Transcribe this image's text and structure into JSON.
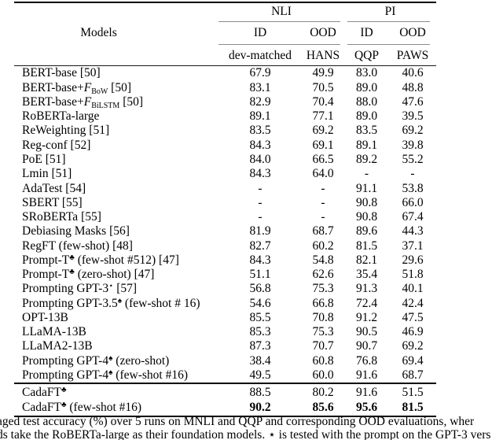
{
  "page": {
    "background": "#ffffff",
    "text_color": "#000000",
    "rule_color": "#000000",
    "cmidrule_color": "#8c8c8c"
  },
  "table": {
    "models_header": "Models",
    "groups": [
      {
        "label": "NLI",
        "sub": [
          "ID",
          "OOD"
        ],
        "datasets": [
          "dev-matched",
          "HANS"
        ]
      },
      {
        "label": "PI",
        "sub": [
          "ID",
          "OOD"
        ],
        "datasets": [
          "QQP",
          "PAWS"
        ]
      }
    ],
    "rows": [
      {
        "pre": "BERT-base",
        "post": " [50]",
        "values": [
          "67.9",
          "49.9",
          "83.0",
          "40.6"
        ]
      },
      {
        "pre": "BERT-base+",
        "cal": "F",
        "sub": "BoW",
        "post": " [50]",
        "values": [
          "83.1",
          "70.5",
          "89.0",
          "48.8"
        ]
      },
      {
        "pre": "BERT-base+",
        "cal": "F",
        "sub": "BiLSTM",
        "post": " [50]",
        "values": [
          "82.9",
          "70.4",
          "88.0",
          "47.6"
        ]
      },
      {
        "pre": "RoBERTa-large",
        "values": [
          "89.1",
          "77.1",
          "89.0",
          "39.5"
        ]
      },
      {
        "pre": "ReWeighting [51]",
        "values": [
          "83.5",
          "69.2",
          "83.5",
          "69.2"
        ]
      },
      {
        "pre": "Reg-conf [52]",
        "values": [
          "84.3",
          "69.1",
          "89.1",
          "39.8"
        ]
      },
      {
        "pre": "PoE [51]",
        "values": [
          "84.0",
          "66.5",
          "89.2",
          "55.2"
        ]
      },
      {
        "pre": "Lmin [51]",
        "values": [
          "84.3",
          "64.0",
          "-",
          "-"
        ]
      },
      {
        "pre": "AdaTest [54]",
        "values": [
          "-",
          "-",
          "91.1",
          "53.8"
        ]
      },
      {
        "pre": "SBERT [55]",
        "values": [
          "-",
          "-",
          "90.8",
          "66.0"
        ]
      },
      {
        "pre": "SRoBERTa [55]",
        "values": [
          "-",
          "-",
          "90.8",
          "67.4"
        ]
      },
      {
        "pre": "Debiasing Masks [56]",
        "values": [
          "81.9",
          "68.7",
          "89.6",
          "44.3"
        ]
      },
      {
        "pre": "RegFT (few-shot) [48]",
        "values": [
          "82.7",
          "60.2",
          "81.5",
          "37.1"
        ]
      },
      {
        "pre": "Prompt-T",
        "sup": "♣",
        "post": " (few-shot #512) [47]",
        "values": [
          "84.3",
          "54.8",
          "82.1",
          "29.6"
        ]
      },
      {
        "pre": "Prompt-T",
        "sup": "♣",
        "post": " (zero-shot) [47]",
        "values": [
          "51.1",
          "62.6",
          "35.4",
          "51.8"
        ]
      },
      {
        "pre": "Prompting GPT-3",
        "sup": "⋆",
        "post": " [57]",
        "values": [
          "56.8",
          "75.3",
          "91.3",
          "40.1"
        ]
      },
      {
        "pre": "Prompting GPT-3.5",
        "sup": "♠",
        "post": " (few-shot # 16)",
        "values": [
          "54.6",
          "66.8",
          "72.4",
          "42.4"
        ]
      },
      {
        "pre": "OPT-13B",
        "values": [
          "85.5",
          "70.8",
          "91.2",
          "47.5"
        ]
      },
      {
        "pre": "LLaMA-13B",
        "values": [
          "85.3",
          "75.3",
          "90.5",
          "46.9"
        ]
      },
      {
        "pre": "LLaMA2-13B",
        "values": [
          "87.3",
          "70.7",
          "90.7",
          "69.2"
        ]
      },
      {
        "pre": "Prompting GPT-4",
        "sup": "♠",
        "post": " (zero-shot)",
        "values": [
          "38.4",
          "60.8",
          "76.8",
          "69.4"
        ]
      },
      {
        "pre": "Prompting GPT-4",
        "sup": "♠",
        "post": " (few-shot #16)",
        "values": [
          "49.5",
          "60.0",
          "91.6",
          "68.7"
        ]
      }
    ],
    "footer_rows": [
      {
        "pre": "CadaFT",
        "sup": "♣",
        "values": [
          "88.5",
          "80.2",
          "91.6",
          "51.5"
        ]
      },
      {
        "pre": "CadaFT",
        "sup": "♣",
        "post": " (few-shot #16)",
        "bold": true,
        "values": [
          "90.2",
          "85.6",
          "95.6",
          "81.5"
        ]
      }
    ]
  },
  "caption": {
    "line1": "aged test accuracy (%) over 5 runs on MNLI and QQP and corresponding OOD evaluations, wher",
    "line2": "ds take the RoBERTa-large as their foundation models. ⋆ is tested with the prompt on the GPT-3 vers"
  }
}
